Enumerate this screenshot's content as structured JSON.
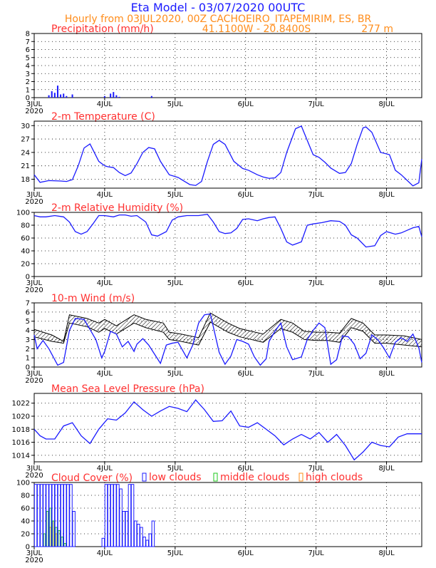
{
  "header": {
    "title": "Eta Model - 03/07/2020 00UTC",
    "subtitle": "Hourly from 03JUL2020, 00Z  CACHOEIRO_ITAPEMIRIM, ES, BR",
    "coords": "41.1100W - 20.8400S",
    "elevation": "277  m",
    "title_color": "#1a1aff",
    "subtitle_color": "#ff8c1a"
  },
  "x_axis": {
    "day_labels": [
      "3JUL",
      "4JUL",
      "5JUL",
      "6JUL",
      "7JUL",
      "8JUL"
    ],
    "year_label": "2020",
    "hours_total": 132
  },
  "chart_data": [
    {
      "type": "bar",
      "title": "Precipitation (mm/h)",
      "y_ticks": [
        "0",
        "1",
        "2",
        "3",
        "4",
        "5",
        "6",
        "7",
        "8"
      ],
      "ylim": [
        0,
        8
      ],
      "color": "#1a1aff",
      "x_hours": [
        5,
        6,
        7,
        8,
        9,
        10,
        11,
        13,
        24,
        26,
        27,
        28,
        29,
        40
      ],
      "values": [
        0.3,
        0.8,
        0.6,
        1.5,
        0.4,
        0.5,
        0.2,
        0.4,
        0.2,
        0.5,
        0.7,
        0.3,
        0.1,
        0.2
      ]
    },
    {
      "type": "line",
      "title": "2-m Temperature (C)",
      "y_ticks": [
        "18",
        "21",
        "24",
        "27",
        "30"
      ],
      "ylim": [
        16,
        31
      ],
      "color": "#1a1aff",
      "x_hours": [
        0,
        2,
        5,
        9,
        11,
        13,
        15,
        17,
        19,
        22,
        24,
        25,
        27,
        29,
        31,
        33,
        35,
        37,
        39,
        41,
        43,
        46,
        49,
        53,
        55,
        57,
        59,
        61,
        63,
        65,
        68,
        71,
        73,
        76,
        78,
        80,
        82,
        84,
        86,
        89,
        91,
        95,
        97,
        99,
        101,
        104,
        106,
        108,
        110,
        112,
        113,
        115,
        118,
        121,
        123,
        125,
        129,
        131,
        132
      ],
      "values": [
        19,
        17.3,
        17.7,
        17.6,
        17.5,
        17.9,
        21,
        25,
        25.9,
        22,
        21,
        20.8,
        20.6,
        19.5,
        18.8,
        19.4,
        21.5,
        24,
        25.1,
        24.8,
        22,
        19,
        18.4,
        16.8,
        16.6,
        17.5,
        22,
        25.8,
        26.7,
        25.8,
        22,
        20.4,
        20,
        19,
        18.5,
        18.2,
        18.3,
        19.5,
        24,
        29.3,
        29.9,
        23.5,
        22.9,
        21.8,
        20.5,
        19.3,
        19.5,
        21.5,
        25.8,
        29.5,
        29.7,
        28.5,
        24,
        23.5,
        20,
        19,
        16.5,
        17.2,
        22.5
      ]
    },
    {
      "type": "line",
      "title": "2-m Relative Humidity (%)",
      "y_ticks": [
        "0",
        "20",
        "40",
        "60",
        "80",
        "100"
      ],
      "ylim": [
        0,
        100
      ],
      "color": "#1a1aff",
      "x_hours": [
        0,
        2,
        4,
        7,
        10,
        12,
        14,
        16,
        18,
        20,
        22,
        24,
        27,
        29,
        31,
        33,
        35,
        38,
        40,
        42,
        45,
        47,
        49,
        52,
        56,
        59,
        61,
        63,
        65,
        67,
        69,
        71,
        73,
        76,
        78,
        80,
        82,
        84,
        86,
        88,
        91,
        93,
        95,
        98,
        101,
        104,
        106,
        108,
        110,
        113,
        116,
        118,
        120,
        123,
        125,
        127,
        129,
        131,
        132
      ],
      "values": [
        95,
        93,
        93,
        95,
        93,
        85,
        70,
        66,
        70,
        82,
        95,
        95,
        93,
        96,
        96,
        94,
        95,
        85,
        65,
        63,
        70,
        88,
        93,
        95,
        95,
        97,
        85,
        70,
        67,
        68,
        75,
        89,
        90,
        87,
        90,
        92,
        93,
        75,
        54,
        49,
        54,
        80,
        82,
        84,
        87,
        86,
        80,
        65,
        60,
        46,
        48,
        64,
        70,
        66,
        68,
        72,
        76,
        78,
        62
      ]
    },
    {
      "type": "line",
      "title": "10-m Wind (m/s)",
      "y_ticks": [
        "0",
        "1",
        "2",
        "3",
        "4",
        "5",
        "6",
        "7"
      ],
      "ylim": [
        0,
        7
      ],
      "color": "#1a1aff",
      "x_hours": [
        0,
        1,
        3,
        5,
        8,
        10,
        12,
        14,
        17,
        21,
        23,
        24,
        26,
        28,
        30,
        32,
        34,
        35,
        37,
        39,
        41,
        43,
        45,
        47,
        49,
        52,
        54,
        56,
        58,
        60,
        62,
        63,
        65,
        67,
        69,
        71,
        73,
        75,
        77,
        79,
        80,
        82,
        84,
        86,
        88,
        91,
        93,
        95,
        97,
        99,
        101,
        103,
        105,
        107,
        109,
        111,
        113,
        115,
        117,
        119,
        121,
        123,
        125,
        127,
        129,
        131,
        132
      ],
      "values": [
        3.5,
        2,
        2.9,
        2,
        0.2,
        0.5,
        4,
        5.3,
        5.2,
        3,
        1,
        1.7,
        3.9,
        3.6,
        2.2,
        2.8,
        1.7,
        2.5,
        3.1,
        2.4,
        1.4,
        0.4,
        2.4,
        2.6,
        2.7,
        1,
        2.4,
        4.8,
        5.7,
        5.8,
        3,
        1.6,
        0.3,
        1.2,
        3,
        2.8,
        2.5,
        1.1,
        0.2,
        0.9,
        2.8,
        3.9,
        4.8,
        2.2,
        0.8,
        1.1,
        3,
        4,
        4.8,
        4.3,
        0.3,
        0.8,
        3.4,
        3.3,
        2.5,
        0.9,
        1.5,
        3.5,
        3,
        2.1,
        1,
        2.7,
        3.2,
        2.8,
        3.6,
        2.1,
        0.5
      ]
    },
    {
      "type": "line",
      "title": "Mean Sea Level Pressure (hPa)",
      "y_ticks": [
        "1014",
        "1016",
        "1018",
        "1020",
        "1022"
      ],
      "ylim": [
        1013,
        1023.5
      ],
      "color": "#1a1aff",
      "x_hours": [
        0,
        2,
        4,
        7,
        10,
        13,
        16,
        19,
        22,
        25,
        28,
        31,
        34,
        37,
        40,
        43,
        46,
        49,
        52,
        55,
        58,
        61,
        64,
        67,
        70,
        73,
        76,
        79,
        82,
        85,
        88,
        91,
        94,
        97,
        100,
        103,
        106,
        109,
        112,
        115,
        118,
        121,
        124,
        127,
        130,
        132
      ],
      "values": [
        1018,
        1017,
        1016.5,
        1016.5,
        1018.5,
        1019,
        1017,
        1015.8,
        1018,
        1019.6,
        1019.4,
        1020.5,
        1022.2,
        1021,
        1020,
        1020.8,
        1021.5,
        1021.2,
        1020.7,
        1022.5,
        1021,
        1019.2,
        1019.3,
        1020.8,
        1018.5,
        1018.3,
        1019,
        1018,
        1017,
        1015.6,
        1016.5,
        1017.2,
        1016.5,
        1017.5,
        1016,
        1017.2,
        1015.5,
        1013.3,
        1014.5,
        1016,
        1015.5,
        1015.3,
        1016.8,
        1017.3,
        1017.3,
        1017.3
      ]
    },
    {
      "type": "bar",
      "title": "Cloud Cover (%)",
      "legend": [
        "low clouds",
        "middle clouds",
        "high clouds"
      ],
      "legend_colors": [
        "#1a1aff",
        "#1ec81e",
        "#ff8c1a"
      ],
      "y_ticks": [
        "0",
        "20",
        "40",
        "60",
        "80",
        "100"
      ],
      "ylim": [
        0,
        100
      ],
      "low": {
        "x_hours": [
          0,
          1,
          2,
          3,
          4,
          5,
          6,
          7,
          8,
          9,
          10,
          11,
          12,
          13,
          14,
          23,
          24,
          25,
          26,
          27,
          28,
          29,
          30,
          31,
          32,
          33,
          34,
          35,
          36,
          37,
          38,
          39,
          40
        ],
        "values": [
          97,
          97,
          97,
          97,
          97,
          97,
          97,
          97,
          97,
          97,
          97,
          97,
          97,
          55,
          0,
          13,
          97,
          97,
          97,
          97,
          97,
          90,
          55,
          55,
          97,
          97,
          40,
          35,
          30,
          15,
          10,
          20,
          40
        ]
      },
      "mid": {
        "x_hours": [
          3,
          4,
          5,
          6,
          7,
          8,
          9,
          10
        ],
        "values": [
          20,
          55,
          60,
          40,
          30,
          25,
          15,
          5
        ]
      },
      "high": {
        "x_hours": [
          5,
          6,
          7
        ],
        "values": [
          30,
          40,
          20
        ]
      }
    }
  ]
}
